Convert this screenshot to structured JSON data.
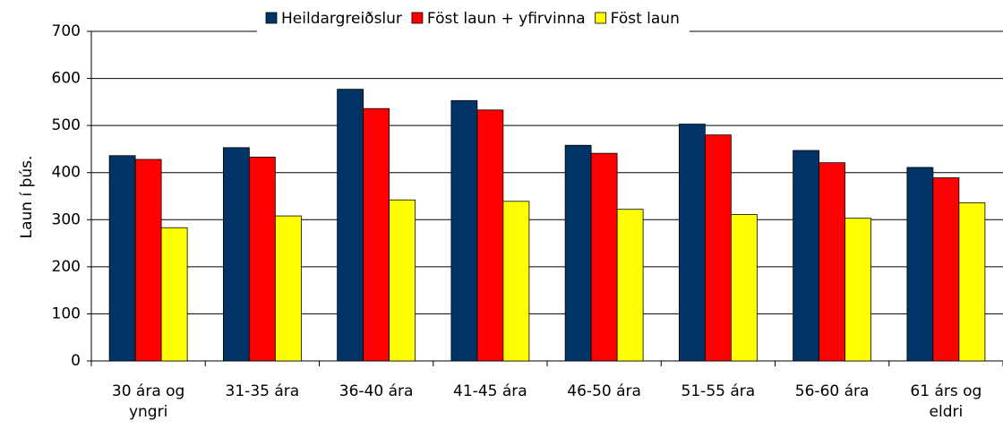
{
  "chart_data": {
    "type": "bar",
    "y_label": "Laun í þús.",
    "categories": [
      "30 ára og yngri",
      "31-35 ára",
      "36-40 ára",
      "41-45 ára",
      "46-50 ára",
      "51-55 ára",
      "56-60 ára",
      "61 árs og eldri"
    ],
    "series": [
      {
        "name": "Heildargreiðslur",
        "color": "#003366",
        "values": [
          436,
          453,
          577,
          553,
          458,
          503,
          447,
          411
        ]
      },
      {
        "name": "Föst laun + yfirvinna",
        "color": "#ff0000",
        "values": [
          428,
          433,
          536,
          533,
          441,
          480,
          421,
          389
        ]
      },
      {
        "name": "Föst laun",
        "color": "#ffff00",
        "values": [
          283,
          308,
          342,
          339,
          322,
          311,
          303,
          336
        ]
      }
    ],
    "ylim": [
      0,
      700
    ],
    "yticks": [
      0,
      100,
      200,
      300,
      400,
      500,
      600,
      700
    ],
    "grid": true,
    "legend": "top"
  }
}
